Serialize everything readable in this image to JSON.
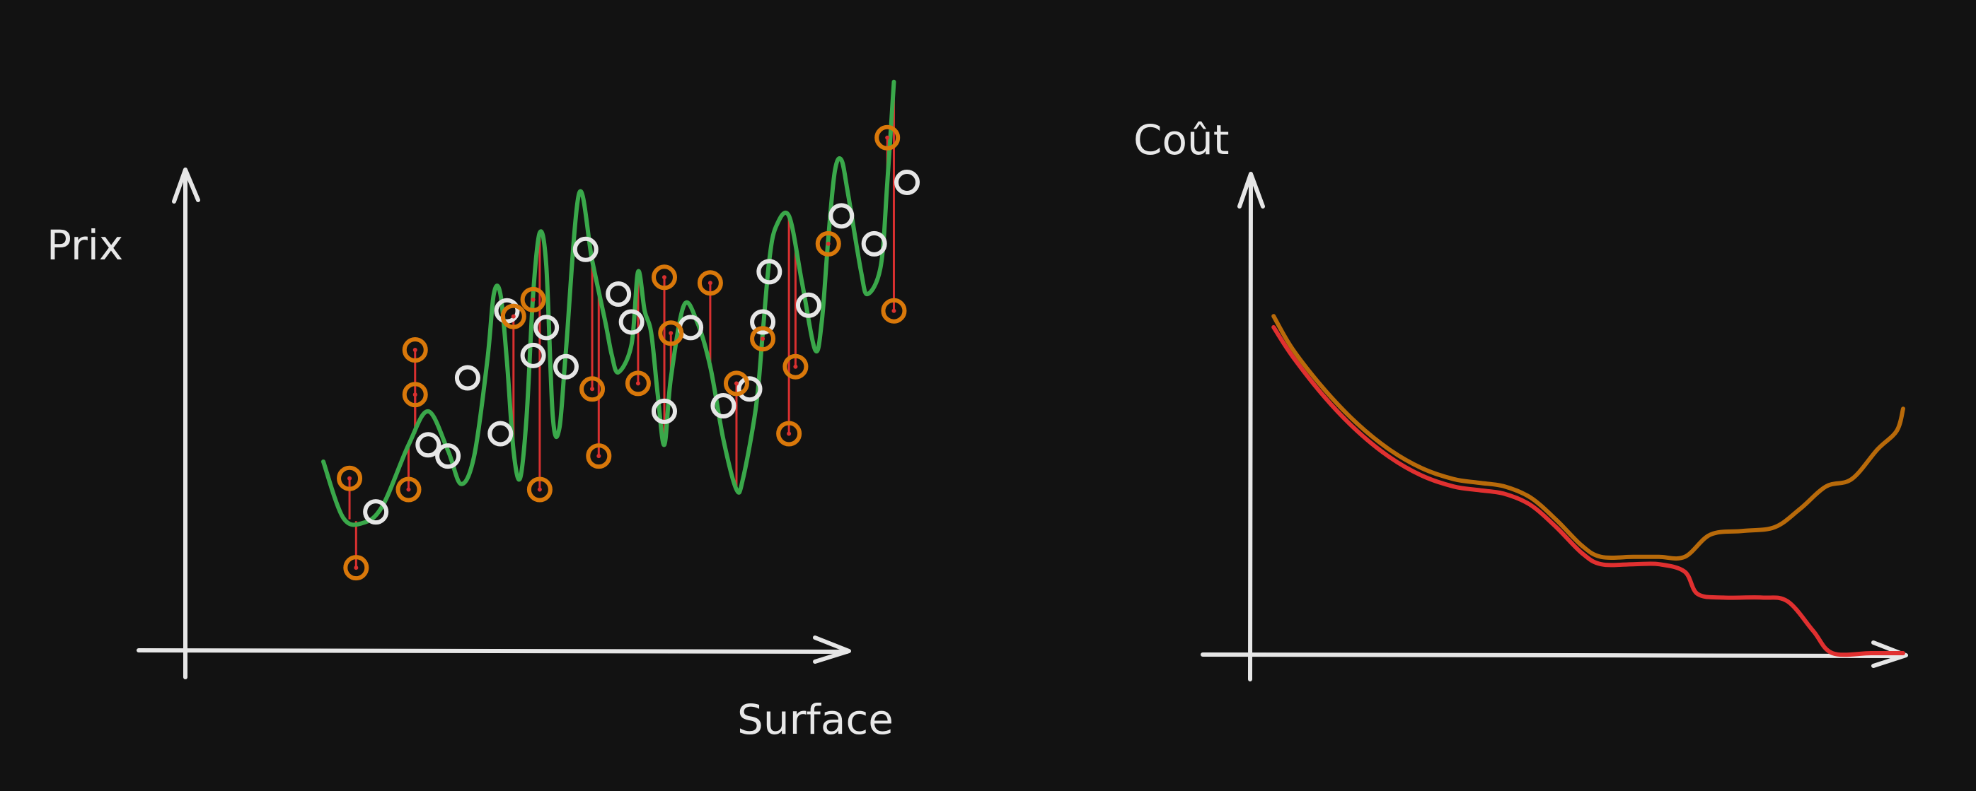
{
  "colors": {
    "background": "#121212",
    "axis": "#e6e6e6",
    "training_points": "#e6e6e6",
    "test_points": "#d9780a",
    "residuals": "#d93030",
    "overfit_curve": "#3aa84a",
    "test_cost": "#b86a0a",
    "train_cost": "#e03030"
  },
  "chart_data": [
    {
      "type": "scatter",
      "title": "",
      "xlabel": "Surface",
      "ylabel": "Prix",
      "ticks": "none",
      "xlim": [
        0,
        100
      ],
      "ylim": [
        0,
        100
      ],
      "series": [
        {
          "role": "training",
          "marker": "white-circle",
          "points": [
            [
              19,
              21
            ],
            [
              27,
              33
            ],
            [
              30,
              31
            ],
            [
              33,
              45
            ],
            [
              38,
              35
            ],
            [
              39,
              57
            ],
            [
              43,
              49
            ],
            [
              45,
              54
            ],
            [
              48,
              47
            ],
            [
              51,
              68
            ],
            [
              56,
              60
            ],
            [
              58,
              55
            ],
            [
              63,
              39
            ],
            [
              67,
              54
            ],
            [
              72,
              40
            ],
            [
              76,
              43
            ],
            [
              78,
              55
            ],
            [
              79,
              64
            ],
            [
              85,
              58
            ],
            [
              90,
              74
            ],
            [
              95,
              69
            ],
            [
              100,
              80
            ]
          ]
        },
        {
          "role": "test",
          "marker": "orange-circle",
          "points": [
            [
              15,
              27
            ],
            [
              16,
              11
            ],
            [
              24,
              25
            ],
            [
              25,
              42
            ],
            [
              25,
              50
            ],
            [
              40,
              56
            ],
            [
              43,
              59
            ],
            [
              44,
              25
            ],
            [
              52,
              43
            ],
            [
              53,
              31
            ],
            [
              59,
              44
            ],
            [
              63,
              63
            ],
            [
              64,
              53
            ],
            [
              70,
              62
            ],
            [
              74,
              44
            ],
            [
              78,
              52
            ],
            [
              82,
              35
            ],
            [
              83,
              47
            ],
            [
              88,
              69
            ],
            [
              97,
              88
            ],
            [
              98,
              57
            ]
          ]
        },
        {
          "role": "fit",
          "style": "green-curve",
          "points": [
            [
              11,
              30
            ],
            [
              14,
              20
            ],
            [
              17,
              19
            ],
            [
              20,
              22
            ],
            [
              24,
              33
            ],
            [
              27,
              39
            ],
            [
              30,
              32
            ],
            [
              32,
              26
            ],
            [
              34,
              31
            ],
            [
              36,
              48
            ],
            [
              37,
              60
            ],
            [
              38,
              60
            ],
            [
              39,
              48
            ],
            [
              40,
              32
            ],
            [
              41,
              27
            ],
            [
              42,
              38
            ],
            [
              43,
              60
            ],
            [
              44,
              71
            ],
            [
              45,
              65
            ],
            [
              46,
              38
            ],
            [
              47,
              36
            ],
            [
              48,
              50
            ],
            [
              50,
              78
            ],
            [
              52,
              66
            ],
            [
              54,
              55
            ],
            [
              55,
              49
            ],
            [
              56,
              46
            ],
            [
              58,
              51
            ],
            [
              59,
              64
            ],
            [
              60,
              57
            ],
            [
              61,
              53
            ],
            [
              62,
              42
            ],
            [
              63,
              33
            ],
            [
              64,
              45
            ],
            [
              66,
              58
            ],
            [
              68,
              55
            ],
            [
              70,
              47
            ],
            [
              72,
              34
            ],
            [
              74,
              25
            ],
            [
              75,
              27
            ],
            [
              77,
              40
            ],
            [
              78,
              53
            ],
            [
              79,
              66
            ],
            [
              80,
              72
            ],
            [
              82,
              74
            ],
            [
              84,
              62
            ],
            [
              86,
              50
            ],
            [
              87,
              55
            ],
            [
              88,
              70
            ],
            [
              89,
              82
            ],
            [
              90,
              84
            ],
            [
              91,
              78
            ],
            [
              93,
              64
            ],
            [
              94,
              60
            ],
            [
              96,
              65
            ],
            [
              97,
              80
            ],
            [
              98,
              98
            ]
          ]
        }
      ]
    },
    {
      "type": "line",
      "title": "",
      "xlabel": "",
      "ylabel": "Coût",
      "ticks": "none",
      "xlim": [
        0,
        100
      ],
      "ylim": [
        0,
        100
      ],
      "series": [
        {
          "role": "test-cost",
          "color": "orange",
          "points": [
            [
              2,
              91
            ],
            [
              5,
              82
            ],
            [
              10,
              71
            ],
            [
              15,
              62
            ],
            [
              20,
              55
            ],
            [
              25,
              50
            ],
            [
              30,
              47
            ],
            [
              34,
              46
            ],
            [
              38,
              45
            ],
            [
              42,
              42
            ],
            [
              46,
              36
            ],
            [
              50,
              29
            ],
            [
              53,
              26
            ],
            [
              58,
              26
            ],
            [
              62,
              26
            ],
            [
              66,
              26
            ],
            [
              70,
              32
            ],
            [
              75,
              33
            ],
            [
              80,
              34
            ],
            [
              84,
              39
            ],
            [
              88,
              45
            ],
            [
              92,
              47
            ],
            [
              96,
              55
            ],
            [
              99,
              60
            ],
            [
              100,
              66
            ]
          ]
        },
        {
          "role": "train-cost",
          "color": "red",
          "points": [
            [
              2,
              88
            ],
            [
              5,
              80
            ],
            [
              10,
              69
            ],
            [
              15,
              60
            ],
            [
              20,
              53
            ],
            [
              25,
              48
            ],
            [
              30,
              45
            ],
            [
              34,
              44
            ],
            [
              38,
              43
            ],
            [
              42,
              40
            ],
            [
              46,
              34
            ],
            [
              50,
              27
            ],
            [
              53,
              24
            ],
            [
              58,
              24
            ],
            [
              62,
              24
            ],
            [
              66,
              22
            ],
            [
              68,
              16
            ],
            [
              72,
              15
            ],
            [
              78,
              15
            ],
            [
              82,
              14
            ],
            [
              86,
              6
            ],
            [
              89,
              0
            ],
            [
              95,
              0
            ],
            [
              100,
              0
            ]
          ]
        }
      ]
    }
  ]
}
